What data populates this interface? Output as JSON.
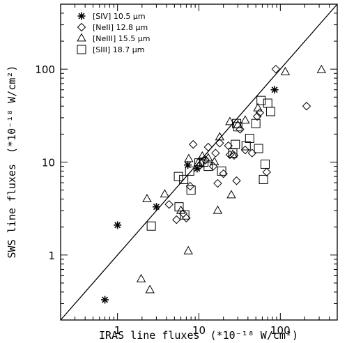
{
  "chart_data": {
    "type": "scatter",
    "xscale": "log",
    "yscale": "log",
    "xlim": [
      0.2,
      500
    ],
    "ylim": [
      0.2,
      500
    ],
    "grid": false,
    "legend_position": "top-left",
    "xlabel": "IRAS line fluxes",
    "xlabel_units": "(*10⁻¹⁸ W/cm²)",
    "ylabel": "SWS line fluxes",
    "ylabel_units": "(*10⁻¹⁸ W/cm²)",
    "x_ticks": [
      {
        "value": 1,
        "label": "1"
      },
      {
        "value": 10,
        "label": "10"
      },
      {
        "value": 100,
        "label": "100"
      }
    ],
    "y_ticks": [
      {
        "value": 1,
        "label": "1"
      },
      {
        "value": 10,
        "label": "10"
      },
      {
        "value": 100,
        "label": "100"
      }
    ],
    "reference_line": {
      "type": "y=x"
    },
    "series": [
      {
        "name": "[SIV] 10.5 μm",
        "marker": "asterisk",
        "points": [
          [
            0.7,
            0.33
          ],
          [
            1.0,
            2.1
          ],
          [
            3.0,
            3.3
          ],
          [
            7.3,
            9.3
          ],
          [
            9.5,
            8.5
          ],
          [
            85,
            60
          ]
        ]
      },
      {
        "name": "[NeII] 12.8 μm",
        "marker": "diamond",
        "points": [
          [
            4.3,
            3.5
          ],
          [
            5.3,
            2.4
          ],
          [
            6.4,
            2.8
          ],
          [
            7.0,
            2.5
          ],
          [
            7.8,
            5.5
          ],
          [
            8.5,
            15.5
          ],
          [
            10.0,
            9.0
          ],
          [
            12,
            10.5
          ],
          [
            13,
            14.5
          ],
          [
            15,
            9.0
          ],
          [
            16,
            12.5
          ],
          [
            17,
            5.9
          ],
          [
            18,
            16
          ],
          [
            20,
            7.5
          ],
          [
            23,
            15
          ],
          [
            24,
            12
          ],
          [
            27,
            11.8
          ],
          [
            29,
            6.3
          ],
          [
            32,
            22.5
          ],
          [
            37,
            13.5
          ],
          [
            45,
            12.5
          ],
          [
            52,
            31
          ],
          [
            56,
            34
          ],
          [
            68,
            7.8
          ],
          [
            88,
            100
          ],
          [
            210,
            40
          ]
        ]
      },
      {
        "name": "[NeIII] 15.5 μm",
        "marker": "triangle",
        "points": [
          [
            1.95,
            0.55
          ],
          [
            2.5,
            0.42
          ],
          [
            2.3,
            4.0
          ],
          [
            3.8,
            4.5
          ],
          [
            6.0,
            3.0
          ],
          [
            7.4,
            1.1
          ],
          [
            7.5,
            10.8
          ],
          [
            9.8,
            9.8
          ],
          [
            11,
            11.5
          ],
          [
            13,
            11
          ],
          [
            15.5,
            10
          ],
          [
            17,
            3.0
          ],
          [
            18,
            18.5
          ],
          [
            24,
            27
          ],
          [
            25,
            4.4
          ],
          [
            26,
            12
          ],
          [
            30,
            25
          ],
          [
            37,
            28
          ],
          [
            53,
            38
          ],
          [
            115,
            93
          ],
          [
            320,
            98
          ]
        ]
      },
      {
        "name": "[SIII] 18.7 μm",
        "marker": "square",
        "points": [
          [
            2.6,
            2.05
          ],
          [
            5.6,
            7.0
          ],
          [
            5.7,
            3.3
          ],
          [
            6.5,
            6.5
          ],
          [
            6.7,
            2.7
          ],
          [
            7.7,
            8.0
          ],
          [
            8.0,
            5.0
          ],
          [
            10,
            9.8
          ],
          [
            11.5,
            10
          ],
          [
            13,
            9.0
          ],
          [
            19,
            8.0
          ],
          [
            26,
            12.5
          ],
          [
            28,
            15.5
          ],
          [
            29,
            26
          ],
          [
            30,
            24
          ],
          [
            38,
            15
          ],
          [
            42,
            18
          ],
          [
            50,
            26
          ],
          [
            54,
            14
          ],
          [
            58,
            46
          ],
          [
            62,
            6.5
          ],
          [
            65,
            9.5
          ],
          [
            70,
            43
          ],
          [
            76,
            35
          ]
        ]
      }
    ]
  }
}
